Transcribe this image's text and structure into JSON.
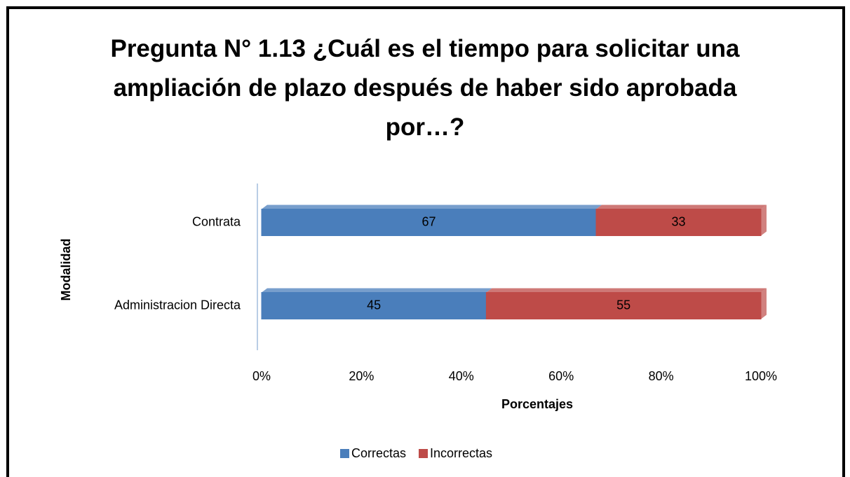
{
  "chart_data": {
    "type": "bar",
    "orientation": "horizontal",
    "stacked": true,
    "title": "Pregunta N° 1.13 ¿Cuál es el tiempo para solicitar una ampliación de plazo después de haber sido aprobada por…?",
    "categories": [
      "Contrata",
      "Administracion Directa"
    ],
    "series": [
      {
        "name": "Correctas",
        "color": "#4a7ebb",
        "values": [
          67,
          45
        ]
      },
      {
        "name": "Incorrectas",
        "color": "#be4b48",
        "values": [
          33,
          55
        ]
      }
    ],
    "xlim": [
      0,
      100
    ],
    "xticks": [
      {
        "value": 0,
        "label": "0%"
      },
      {
        "value": 20,
        "label": "20%"
      },
      {
        "value": 40,
        "label": "40%"
      },
      {
        "value": 60,
        "label": "60%"
      },
      {
        "value": 80,
        "label": "80%"
      },
      {
        "value": 100,
        "label": "100%"
      }
    ],
    "xlabel": "Porcentajes",
    "ylabel": "Modalidad",
    "legend": "bottom"
  }
}
